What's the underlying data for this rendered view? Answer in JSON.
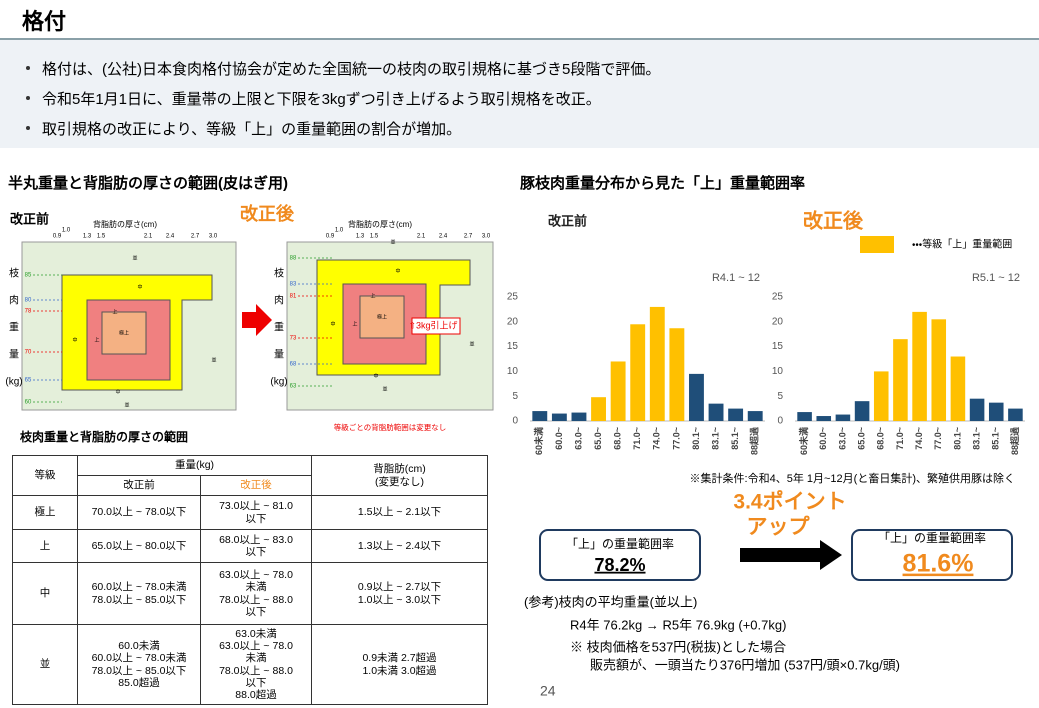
{
  "header": {
    "title": "格付"
  },
  "bullets": [
    "格付は、(公社)日本食肉格付協会が定めた全国統一の枝肉の取引規格に基づき5段階で評価。",
    "令和5年1月1日に、重量帯の上限と下限を3kgずつ引き上げるよう取引規格を改正。",
    "取引規格の改正により、等級「上」の重量範囲の割合が増加。"
  ],
  "left": {
    "heading": "半丸重量と背脂肪の厚さの範囲(皮はぎ用)",
    "diagram": {
      "x_label": "背脂肪の厚さ(cm)",
      "x_ticks": [
        "0.9",
        "1.0",
        "1.3",
        "1.5",
        "2.1",
        "2.4",
        "2.7",
        "3.0"
      ],
      "y_label_chars": [
        "枝",
        "肉",
        "重",
        "量",
        "(kg)"
      ],
      "grades": [
        "極上",
        "上",
        "中",
        "並"
      ],
      "before": {
        "label": "改正前",
        "y_ticks": [
          "85",
          "80",
          "78",
          "70",
          "65",
          "60"
        ]
      },
      "after": {
        "label": "改正後",
        "y_ticks": [
          "88",
          "83",
          "81",
          "73",
          "68",
          "63"
        ],
        "note": "⇧3kg引上げ"
      },
      "footnote": "等級ごとの背脂肪範囲は変更なし"
    },
    "table_title": "枝肉重量と背脂肪の厚さの範囲"
  },
  "table": {
    "header": [
      "等級",
      "重量(kg)",
      "背脂肪(cm)\n(変更なし)"
    ],
    "subheader": [
      "改正前",
      "改正後"
    ],
    "rows": [
      [
        "極上",
        "70.0以上 ~ 78.0以下",
        "73.0以上 ~ 81.0\n以下",
        "1.5以上 ~ 2.1以下"
      ],
      [
        "上",
        "65.0以上 ~ 80.0以下",
        "68.0以上 ~ 83.0\n以下",
        "1.3以上 ~ 2.4以下"
      ],
      [
        "中",
        "60.0以上 ~ 78.0未満\n78.0以上 ~ 85.0以下",
        "63.0以上 ~ 78.0\n未満\n78.0以上 ~ 88.0\n以下",
        "0.9以上 ~ 2.7以下\n1.0以上 ~ 3.0以下"
      ],
      [
        "並",
        "60.0未満\n60.0以上 ~ 78.0未満\n78.0以上 ~ 85.0以下\n85.0超過",
        "63.0未満\n63.0以上 ~ 78.0\n未満\n78.0以上 ~ 88.0\n以下\n88.0超過",
        "0.9未満 2.7超過\n1.0未満 3.0超過"
      ]
    ]
  },
  "right": {
    "heading": "豚枝肉重量分布から見た「上」重量範囲率",
    "legend": {
      "label": "・・・等級「上」重量範囲",
      "color": "#ffc000"
    },
    "note": "※集計条件:令和4、5年 1月~12月(と畜日集計)、繁殖供用豚は除く",
    "box_before": {
      "label": "「上」の重量範囲率",
      "value": "78.2%"
    },
    "increase": [
      "3.4ポイント",
      "アップ"
    ],
    "box_after": {
      "label": "「上」の重量範囲率",
      "value": "81.6%"
    },
    "reference": [
      "(参考)枝肉の平均重量(並以上)",
      "R4年 76.2kg → R5年 76.9kg (+0.7kg)",
      "※ 枝肉価格を537円(税抜)とした場合",
      "販売額が、一頭当たり376円増加 (537円/頭×0.7kg/頭)"
    ],
    "page_number": "24"
  },
  "chart_data": [
    {
      "type": "bar",
      "title": "改正前",
      "subtitle": "R4.1 ~ 12",
      "categories": [
        "60未満",
        "60.0~",
        "63.0~",
        "65.0~",
        "68.0~",
        "71.0~",
        "74.0~",
        "77.0~",
        "80.1~",
        "83.1~",
        "85.1~",
        "88超過"
      ],
      "values": [
        2,
        1.5,
        1.7,
        4.8,
        12,
        19.5,
        23,
        18.7,
        9.5,
        3.5,
        2.5,
        2
      ],
      "colors": [
        "#1f4e79",
        "#1f4e79",
        "#1f4e79",
        "#ffc000",
        "#ffc000",
        "#ffc000",
        "#ffc000",
        "#ffc000",
        "#1f4e79",
        "#1f4e79",
        "#1f4e79",
        "#1f4e79"
      ],
      "ylim": [
        0,
        25
      ],
      "yticks": [
        0,
        5,
        10,
        15,
        20,
        25
      ]
    },
    {
      "type": "bar",
      "title": "改正後",
      "subtitle": "R5.1 ~ 12",
      "categories": [
        "60未満",
        "60.0~",
        "63.0~",
        "65.0~",
        "68.0~",
        "71.0~",
        "74.0~",
        "77.0~",
        "80.1~",
        "83.1~",
        "85.1~",
        "88超過"
      ],
      "values": [
        1.8,
        1,
        1.3,
        4,
        10,
        16.5,
        22,
        20.5,
        13,
        4.5,
        3.7,
        2.5
      ],
      "colors": [
        "#1f4e79",
        "#1f4e79",
        "#1f4e79",
        "#1f4e79",
        "#ffc000",
        "#ffc000",
        "#ffc000",
        "#ffc000",
        "#ffc000",
        "#1f4e79",
        "#1f4e79",
        "#1f4e79"
      ],
      "ylim": [
        0,
        25
      ],
      "yticks": [
        0,
        5,
        10,
        15,
        20,
        25
      ]
    }
  ]
}
